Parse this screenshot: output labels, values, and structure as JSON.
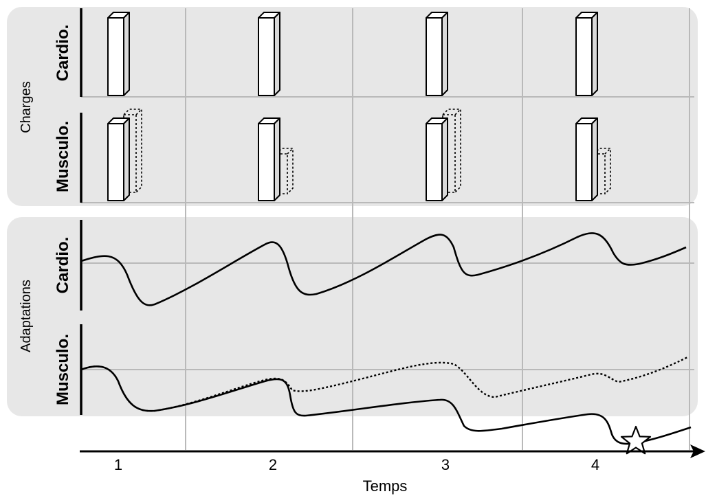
{
  "groups": {
    "charges": "Charges",
    "adaptations": "Adaptations"
  },
  "rows": {
    "charges_cardio": "Cardio.",
    "charges_musculo": "Musculo.",
    "adaptations_cardio": "Cardio.",
    "adaptations_musculo": "Musculo."
  },
  "axis": {
    "ticks": [
      "1",
      "2",
      "3",
      "4"
    ],
    "xlabel": "Temps"
  },
  "colors": {
    "panel": "#e7e7e7",
    "grid": "#b9b9b9",
    "ink": "#000000"
  },
  "icons": {
    "marker": "star-icon"
  }
}
